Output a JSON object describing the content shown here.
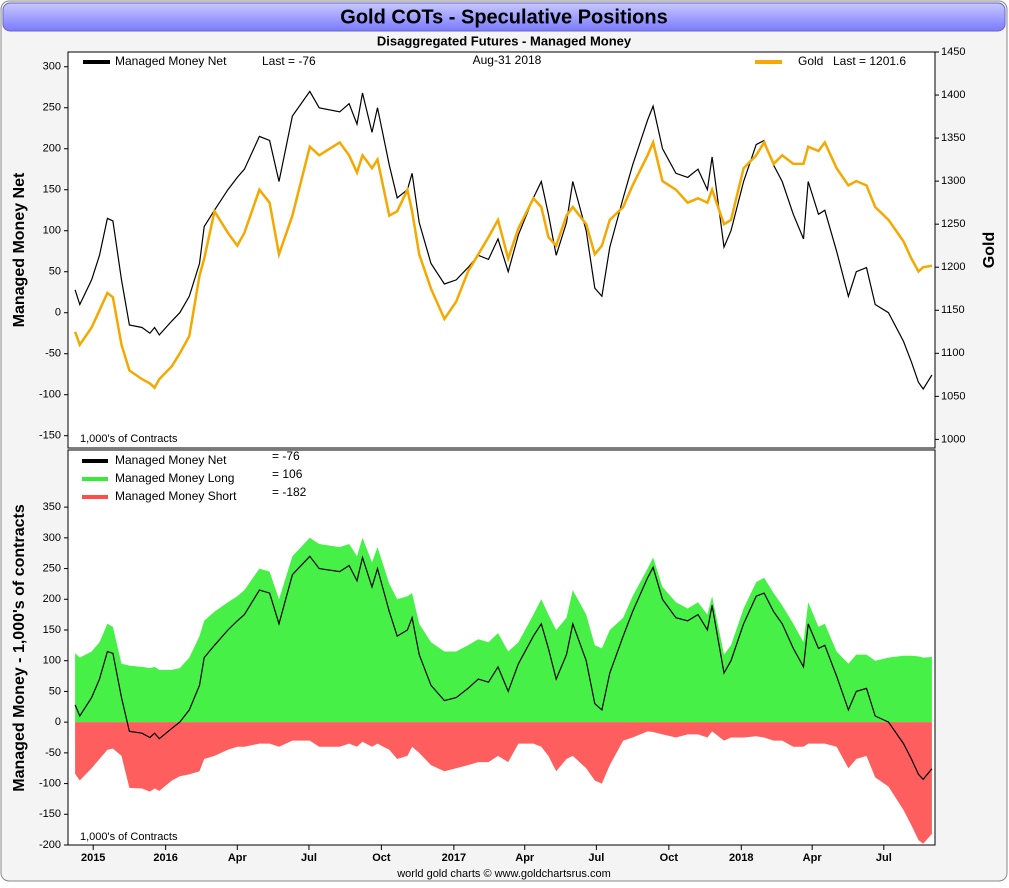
{
  "chart_data": [
    {
      "type": "line",
      "title": "Gold COTs - Speculative Positions",
      "subtitle": "Disaggregated Futures - Managed Money",
      "date_label": "Aug-31  2018",
      "note": "1,000's of Contracts",
      "ylabel": "Managed Money Net",
      "y2label": "Gold",
      "x": [
        "2015-09-08",
        "2015-09-14",
        "2015-09-29",
        "2015-10-09",
        "2015-10-19",
        "2015-10-26",
        "2015-11-06",
        "2015-11-16",
        "2015-12-02",
        "2015-12-12",
        "2015-12-18",
        "2015-12-24",
        "2016-01-09",
        "2016-01-19",
        "2016-01-31",
        "2016-02-13",
        "2016-02-19",
        "2016-03-03",
        "2016-03-20",
        "2016-04-01",
        "2016-04-10",
        "2016-04-29",
        "2016-05-12",
        "2016-05-24",
        "2016-06-10",
        "2016-07-02",
        "2016-07-14",
        "2016-08-09",
        "2016-08-21",
        "2016-08-31",
        "2016-09-07",
        "2016-09-19",
        "2016-09-26",
        "2016-10-11",
        "2016-10-21",
        "2016-11-03",
        "2016-11-09",
        "2016-11-18",
        "2016-12-03",
        "2016-12-20",
        "2017-01-04",
        "2017-01-19",
        "2017-02-01",
        "2017-02-14",
        "2017-02-26",
        "2017-03-11",
        "2017-03-24",
        "2017-04-12",
        "2017-04-22",
        "2017-05-01",
        "2017-05-11",
        "2017-05-24",
        "2017-06-01",
        "2017-06-18",
        "2017-06-29",
        "2017-07-08",
        "2017-07-18",
        "2017-08-04",
        "2017-08-16",
        "2017-09-04",
        "2017-09-11",
        "2017-09-23",
        "2017-10-10",
        "2017-10-25",
        "2017-11-07",
        "2017-11-19",
        "2017-11-25",
        "2017-12-10",
        "2017-12-19",
        "2018-01-04",
        "2018-01-20",
        "2018-01-30",
        "2018-02-11",
        "2018-02-22",
        "2018-03-08",
        "2018-03-21",
        "2018-03-27",
        "2018-04-09",
        "2018-04-17",
        "2018-05-02",
        "2018-05-17",
        "2018-05-27",
        "2018-06-09",
        "2018-06-20",
        "2018-07-07",
        "2018-07-26",
        "2018-08-05",
        "2018-08-14",
        "2018-08-20",
        "2018-08-31"
      ],
      "xlim": [
        "2015-08-30",
        "2018-09-04"
      ],
      "ylim": [
        -165,
        318
      ],
      "yticks": [
        -150,
        -100,
        -50,
        0,
        50,
        100,
        150,
        200,
        250,
        300
      ],
      "y2lim": [
        990,
        1450
      ],
      "y2ticks": [
        1000,
        1050,
        1100,
        1150,
        1200,
        1250,
        1300,
        1350,
        1400,
        1450
      ],
      "series": [
        {
          "name": "Managed Money Net",
          "legend_value": "Last = -76",
          "color": "#000000",
          "values": [
            28,
            10,
            40,
            70,
            115,
            112,
            40,
            -15,
            -18,
            -25,
            -18,
            -27,
            -10,
            0,
            20,
            60,
            105,
            125,
            150,
            165,
            175,
            215,
            210,
            160,
            240,
            270,
            250,
            245,
            255,
            230,
            268,
            220,
            250,
            180,
            140,
            150,
            170,
            110,
            60,
            35,
            40,
            55,
            70,
            65,
            90,
            50,
            95,
            140,
            160,
            120,
            70,
            110,
            160,
            100,
            30,
            20,
            80,
            140,
            180,
            235,
            252,
            200,
            170,
            165,
            175,
            150,
            190,
            80,
            100,
            160,
            205,
            210,
            180,
            160,
            120,
            90,
            160,
            120,
            125,
            75,
            20,
            50,
            55,
            10,
            0,
            -35,
            -60,
            -85,
            -93,
            -76
          ]
        },
        {
          "name": "Gold",
          "legend_value": "Last = 1201.6",
          "color": "#f5a800",
          "axis": "y2",
          "values": [
            1125,
            1110,
            1130,
            1150,
            1170,
            1165,
            1110,
            1080,
            1070,
            1065,
            1060,
            1070,
            1085,
            1100,
            1120,
            1190,
            1210,
            1265,
            1240,
            1225,
            1240,
            1290,
            1275,
            1215,
            1260,
            1340,
            1330,
            1345,
            1330,
            1310,
            1330,
            1315,
            1325,
            1260,
            1265,
            1290,
            1265,
            1215,
            1175,
            1140,
            1160,
            1195,
            1215,
            1235,
            1255,
            1210,
            1245,
            1280,
            1270,
            1235,
            1225,
            1260,
            1270,
            1250,
            1215,
            1225,
            1255,
            1270,
            1295,
            1330,
            1345,
            1300,
            1290,
            1275,
            1280,
            1275,
            1290,
            1250,
            1255,
            1315,
            1330,
            1345,
            1320,
            1330,
            1320,
            1320,
            1340,
            1335,
            1345,
            1315,
            1295,
            1300,
            1295,
            1270,
            1255,
            1230,
            1210,
            1195,
            1200,
            1201.6
          ]
        }
      ]
    },
    {
      "type": "area",
      "note": "1,000's of Contracts",
      "ylabel": "Managed Money - 1,000's of contracts",
      "source": "world gold charts © www.goldchartsrus.com",
      "x": [
        "2015-09-08",
        "2015-09-14",
        "2015-09-29",
        "2015-10-09",
        "2015-10-19",
        "2015-10-26",
        "2015-11-06",
        "2015-11-16",
        "2015-12-02",
        "2015-12-12",
        "2015-12-18",
        "2015-12-24",
        "2016-01-09",
        "2016-01-19",
        "2016-01-31",
        "2016-02-13",
        "2016-02-19",
        "2016-03-03",
        "2016-03-20",
        "2016-04-01",
        "2016-04-10",
        "2016-04-29",
        "2016-05-12",
        "2016-05-24",
        "2016-06-10",
        "2016-07-02",
        "2016-07-14",
        "2016-08-09",
        "2016-08-21",
        "2016-08-31",
        "2016-09-07",
        "2016-09-19",
        "2016-09-26",
        "2016-10-11",
        "2016-10-21",
        "2016-11-03",
        "2016-11-09",
        "2016-11-18",
        "2016-12-03",
        "2016-12-20",
        "2017-01-04",
        "2017-01-19",
        "2017-02-01",
        "2017-02-14",
        "2017-02-26",
        "2017-03-11",
        "2017-03-24",
        "2017-04-12",
        "2017-04-22",
        "2017-05-01",
        "2017-05-11",
        "2017-05-24",
        "2017-06-01",
        "2017-06-18",
        "2017-06-29",
        "2017-07-08",
        "2017-07-18",
        "2017-08-04",
        "2017-08-16",
        "2017-09-04",
        "2017-09-11",
        "2017-09-23",
        "2017-10-10",
        "2017-10-25",
        "2017-11-07",
        "2017-11-19",
        "2017-11-25",
        "2017-12-10",
        "2017-12-19",
        "2018-01-04",
        "2018-01-20",
        "2018-01-30",
        "2018-02-11",
        "2018-02-22",
        "2018-03-08",
        "2018-03-21",
        "2018-03-27",
        "2018-04-09",
        "2018-04-17",
        "2018-05-02",
        "2018-05-17",
        "2018-05-27",
        "2018-06-09",
        "2018-06-20",
        "2018-07-07",
        "2018-07-26",
        "2018-08-05",
        "2018-08-14",
        "2018-08-20",
        "2018-08-31"
      ],
      "xlim": [
        "2015-08-30",
        "2018-09-04"
      ],
      "xticks": [
        {
          "value": "2015-10-01",
          "label": "2015"
        },
        {
          "value": "2016-01-01",
          "label": "2016"
        },
        {
          "value": "2016-04-01",
          "label": "Apr"
        },
        {
          "value": "2016-07-01",
          "label": "Jul"
        },
        {
          "value": "2016-10-01",
          "label": "Oct"
        },
        {
          "value": "2017-01-01",
          "label": "2017"
        },
        {
          "value": "2017-04-01",
          "label": "Apr"
        },
        {
          "value": "2017-07-01",
          "label": "Jul"
        },
        {
          "value": "2017-10-01",
          "label": "Oct"
        },
        {
          "value": "2018-01-01",
          "label": "2018"
        },
        {
          "value": "2018-04-01",
          "label": "Apr"
        },
        {
          "value": "2018-07-01",
          "label": "Jul"
        }
      ],
      "ylim": [
        -200,
        443
      ],
      "yticks": [
        -200,
        -150,
        -100,
        -50,
        0,
        50,
        100,
        150,
        200,
        250,
        300,
        350
      ],
      "series": [
        {
          "name": "Managed Money Net",
          "legend_value": "= -76",
          "color": "#000000",
          "area": false,
          "values": [
            28,
            10,
            40,
            70,
            115,
            112,
            40,
            -15,
            -18,
            -25,
            -18,
            -27,
            -10,
            0,
            20,
            60,
            105,
            125,
            150,
            165,
            175,
            215,
            210,
            160,
            240,
            270,
            250,
            245,
            255,
            230,
            268,
            220,
            250,
            180,
            140,
            150,
            170,
            110,
            60,
            35,
            40,
            55,
            70,
            65,
            90,
            50,
            95,
            140,
            160,
            120,
            70,
            110,
            160,
            100,
            30,
            20,
            80,
            140,
            180,
            235,
            252,
            200,
            170,
            165,
            175,
            150,
            190,
            80,
            100,
            160,
            205,
            210,
            180,
            160,
            120,
            90,
            160,
            120,
            125,
            75,
            20,
            50,
            55,
            10,
            0,
            -35,
            -60,
            -85,
            -93,
            -76
          ]
        },
        {
          "name": "Managed Money Long",
          "legend_value": "= 106",
          "color": "#33ee33",
          "area": true,
          "values": [
            112,
            105,
            115,
            130,
            160,
            155,
            95,
            92,
            90,
            88,
            90,
            85,
            85,
            88,
            105,
            140,
            165,
            180,
            195,
            205,
            215,
            250,
            245,
            200,
            270,
            300,
            290,
            285,
            290,
            270,
            300,
            260,
            285,
            225,
            200,
            205,
            210,
            160,
            130,
            115,
            115,
            125,
            135,
            130,
            145,
            115,
            130,
            175,
            200,
            175,
            150,
            170,
            215,
            175,
            125,
            120,
            150,
            170,
            205,
            250,
            268,
            220,
            195,
            185,
            195,
            175,
            205,
            110,
            125,
            185,
            228,
            235,
            210,
            190,
            160,
            130,
            195,
            155,
            160,
            115,
            95,
            110,
            110,
            100,
            105,
            108,
            108,
            107,
            105,
            106
          ]
        },
        {
          "name": "Managed Money Short",
          "legend_value": "= -182",
          "color": "#ff4c4c",
          "area": true,
          "values": [
            -84,
            -95,
            -75,
            -60,
            -45,
            -43,
            -55,
            -107,
            -108,
            -113,
            -108,
            -112,
            -95,
            -88,
            -85,
            -80,
            -60,
            -55,
            -45,
            -40,
            -40,
            -35,
            -35,
            -40,
            -30,
            -30,
            -40,
            -40,
            -35,
            -40,
            -32,
            -40,
            -35,
            -45,
            -60,
            -55,
            -40,
            -50,
            -70,
            -80,
            -75,
            -70,
            -65,
            -65,
            -55,
            -65,
            -35,
            -35,
            -40,
            -55,
            -80,
            -60,
            -55,
            -75,
            -95,
            -100,
            -70,
            -30,
            -25,
            -15,
            -16,
            -20,
            -25,
            -20,
            -20,
            -25,
            -15,
            -30,
            -25,
            -25,
            -23,
            -25,
            -30,
            -30,
            -40,
            -40,
            -35,
            -35,
            -35,
            -40,
            -75,
            -60,
            -55,
            -90,
            -105,
            -143,
            -168,
            -192,
            -198,
            -182
          ]
        }
      ]
    }
  ]
}
